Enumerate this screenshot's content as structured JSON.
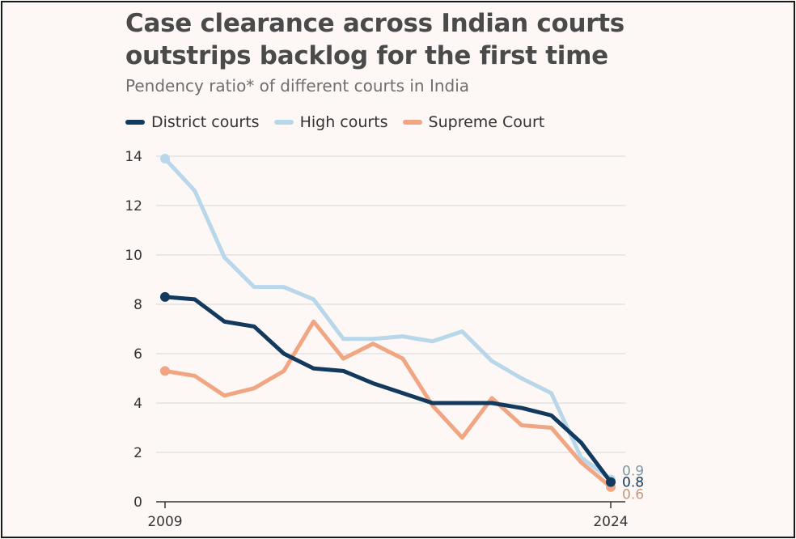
{
  "title": "Case clearance across Indian courts outstrips backlog for the first time",
  "subtitle": "Pendency ratio* of different courts in India",
  "chart_data": {
    "type": "line",
    "title": "Case clearance across Indian courts outstrips backlog for the first time",
    "subtitle": "Pendency ratio* of different courts in India",
    "x": [
      2009,
      2010,
      2011,
      2012,
      2013,
      2014,
      2015,
      2016,
      2017,
      2018,
      2019,
      2020,
      2021,
      2022,
      2023,
      2024
    ],
    "x_tick_labels": [
      "2009",
      "2024"
    ],
    "ylim": [
      0,
      14
    ],
    "y_ticks": [
      0,
      2,
      4,
      6,
      8,
      10,
      12,
      14
    ],
    "grid": "horizontal",
    "legend_position": "top-left",
    "series": [
      {
        "name": "District courts",
        "color": "#12395e",
        "values": [
          8.3,
          8.2,
          7.3,
          7.1,
          6.0,
          5.4,
          5.3,
          4.8,
          4.4,
          4.0,
          4.0,
          4.0,
          3.8,
          3.5,
          2.4,
          0.8
        ],
        "end_label": "0.8"
      },
      {
        "name": "High courts",
        "color": "#b9d7ea",
        "values": [
          13.9,
          12.6,
          9.9,
          8.7,
          8.7,
          8.2,
          6.6,
          6.6,
          6.7,
          6.5,
          6.9,
          5.7,
          5.0,
          4.4,
          1.8,
          0.9
        ],
        "end_label": "0.9"
      },
      {
        "name": "Supreme Court",
        "color": "#f0a682",
        "values": [
          5.3,
          5.1,
          4.3,
          4.6,
          5.3,
          7.3,
          5.8,
          6.4,
          5.8,
          3.9,
          2.6,
          4.2,
          3.1,
          3.0,
          1.6,
          0.6
        ],
        "end_label": "0.6"
      }
    ],
    "end_label_colors": [
      "#7d97a5",
      "#12395e",
      "#c6977c"
    ]
  }
}
